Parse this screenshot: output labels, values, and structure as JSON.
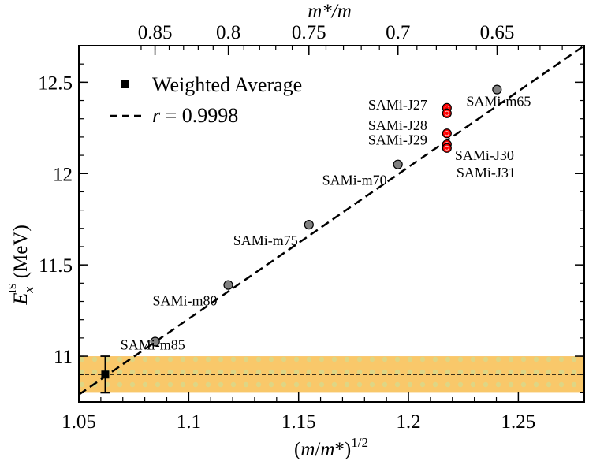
{
  "chart_data": {
    "type": "scatter",
    "xlabel": "(m/m*)",
    "xlabel_sup": "1/2",
    "ylabel": "E",
    "ylabel_sub": "x",
    "ylabel_sup": "IS",
    "ylabel_unit": " (MeV)",
    "top_xlabel": "m*/m",
    "xlim": [
      1.05,
      1.28
    ],
    "ylim": [
      10.75,
      12.7
    ],
    "x_ticks": [
      1.05,
      1.1,
      1.15,
      1.2,
      1.25
    ],
    "x_tick_labels": [
      "1.05",
      "1.1",
      "1.15",
      "1.2",
      "1.25"
    ],
    "y_ticks": [
      11,
      11.5,
      12,
      12.5
    ],
    "y_tick_labels": [
      "11",
      "11.5",
      "12",
      "12.5"
    ],
    "top_ticks": [
      0.85,
      0.8,
      0.75,
      0.7,
      0.65
    ],
    "top_tick_labels": [
      "0.85",
      "0.8",
      "0.75",
      "0.7",
      "0.65"
    ],
    "series": [
      {
        "name": "SAMi-m",
        "color": "#808080",
        "points": [
          {
            "label": "SAMi-m85",
            "x": 1.0847,
            "y": 11.08
          },
          {
            "label": "SAMi-m80",
            "x": 1.118,
            "y": 11.39
          },
          {
            "label": "SAMi-m75",
            "x": 1.1547,
            "y": 11.72
          },
          {
            "label": "SAMi-m70",
            "x": 1.1952,
            "y": 12.05
          },
          {
            "label": "SAMi-m65",
            "x": 1.2403,
            "y": 12.46
          }
        ]
      },
      {
        "name": "SAMi-J",
        "color": "#ff0000",
        "points": [
          {
            "label": "SAMi-J27",
            "x": 1.2175,
            "y": 12.36
          },
          {
            "label": "SAMi-J28",
            "x": 1.2175,
            "y": 12.33
          },
          {
            "label": "SAMi-J29",
            "x": 1.2175,
            "y": 12.22
          },
          {
            "label": "SAMi-J30",
            "x": 1.2175,
            "y": 12.16
          },
          {
            "label": "SAMi-J31",
            "x": 1.2175,
            "y": 12.14
          }
        ]
      }
    ],
    "fit_line": {
      "r_label": "r",
      "r_value": " = 0.9998",
      "x": [
        1.05,
        1.28
      ],
      "y": [
        10.79,
        12.7
      ]
    },
    "weighted_average": {
      "label": "Weighted Average",
      "x": 1.062,
      "y": 10.9,
      "error": 0.1
    },
    "band": {
      "y_low": 10.8,
      "y_high": 11.0,
      "center": 10.9,
      "color": "#f9c86a"
    }
  }
}
